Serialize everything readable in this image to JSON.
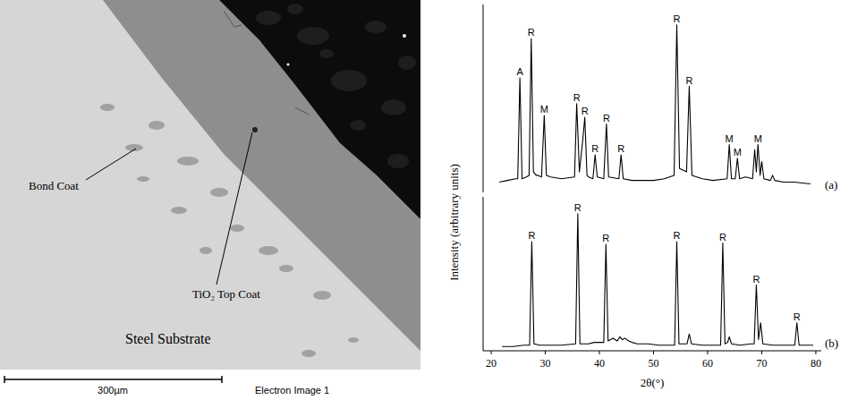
{
  "micrograph": {
    "labels": [
      "Bond Coat",
      "TiO₂ Top Coat",
      "Steel Substrate"
    ],
    "scale_bar": "300µm",
    "caption": "Electron Image 1"
  },
  "chart_data": [
    {
      "type": "line",
      "title": "(a)",
      "y_label": "Intensity (arbitrary units)",
      "xlim": [
        18.5,
        81
      ],
      "ylim": [
        0,
        110
      ],
      "tick_labels": false,
      "x": [
        21.5,
        23,
        24.5,
        24.9,
        25.3,
        25.7,
        26.5,
        27,
        27.4,
        27.8,
        28.3,
        28.6,
        29.3,
        29.8,
        30.2,
        31,
        33,
        35.4,
        35.8,
        36.3,
        36.9,
        37.3,
        37.7,
        38,
        38.8,
        39.2,
        39.6,
        40.8,
        41.3,
        41.7,
        43.6,
        44,
        44.4,
        46,
        48,
        50,
        52,
        53.8,
        54.3,
        54.8,
        56.1,
        56.6,
        57.1,
        59,
        61,
        63.6,
        64,
        64.4,
        65.1,
        65.5,
        65.9,
        67,
        68.3,
        68.7,
        69,
        69.3,
        69.7,
        70,
        70.4,
        71.6,
        72,
        72.4,
        74,
        76,
        79
      ],
      "series": [
        {
          "color": "#000000",
          "values": [
            6,
            7,
            8,
            8,
            67,
            8,
            9,
            10,
            90,
            12,
            10,
            10,
            9,
            45,
            10,
            9,
            8,
            9,
            52,
            12,
            30,
            44,
            10,
            9,
            8,
            22,
            9,
            8,
            40,
            9,
            8,
            22,
            8,
            7,
            7,
            7,
            8,
            10,
            98,
            14,
            12,
            62,
            10,
            8,
            7,
            8,
            28,
            8,
            8,
            20,
            8,
            9,
            8,
            25,
            12,
            28,
            10,
            18,
            8,
            7,
            10,
            7,
            6,
            6,
            5
          ]
        }
      ],
      "annotations": [
        {
          "text": "A",
          "x": 25.3,
          "y": 67
        },
        {
          "text": "R",
          "x": 27.4,
          "y": 90
        },
        {
          "text": "M",
          "x": 29.8,
          "y": 45
        },
        {
          "text": "R",
          "x": 35.8,
          "y": 52
        },
        {
          "text": "R",
          "x": 37.3,
          "y": 44
        },
        {
          "text": "R",
          "x": 39.2,
          "y": 22
        },
        {
          "text": "R",
          "x": 41.3,
          "y": 40
        },
        {
          "text": "R",
          "x": 44,
          "y": 22
        },
        {
          "text": "R",
          "x": 54.3,
          "y": 98
        },
        {
          "text": "R",
          "x": 56.6,
          "y": 62
        },
        {
          "text": "M",
          "x": 64,
          "y": 28
        },
        {
          "text": "M",
          "x": 65.5,
          "y": 20
        },
        {
          "text": "M",
          "x": 69.3,
          "y": 28
        }
      ]
    },
    {
      "type": "line",
      "title": "(b)",
      "x_label": "2θ(°)",
      "xlim": [
        18.5,
        81
      ],
      "ylim": [
        0,
        110
      ],
      "xticks": [
        20,
        30,
        40,
        50,
        60,
        70,
        80
      ],
      "tick_labels": "x",
      "x": [
        22,
        24,
        26,
        27.1,
        27.5,
        27.9,
        29,
        31,
        33,
        35.6,
        36,
        36.4,
        38,
        39,
        40.8,
        41.2,
        41.6,
        42.5,
        43.3,
        43.8,
        44.2,
        44.7,
        45.4,
        46,
        47,
        49,
        51,
        53,
        53.9,
        54.3,
        54.7,
        56.2,
        56.6,
        57,
        59,
        61,
        62.4,
        62.8,
        63.2,
        63.7,
        64,
        64.4,
        66,
        68,
        68.6,
        69,
        69.4,
        69.8,
        70.2,
        72,
        74,
        76.1,
        76.5,
        76.9,
        78,
        79.5
      ],
      "series": [
        {
          "color": "#000000",
          "values": [
            3,
            3,
            4,
            4,
            78,
            5,
            4,
            4,
            4,
            5,
            98,
            5,
            5,
            6,
            6,
            76,
            7,
            9,
            7,
            10,
            8,
            9,
            7,
            6,
            5,
            5,
            4,
            4,
            4,
            78,
            5,
            5,
            12,
            5,
            4,
            4,
            4,
            77,
            5,
            6,
            10,
            5,
            4,
            5,
            5,
            47,
            8,
            20,
            5,
            4,
            4,
            4,
            20,
            4,
            4,
            4
          ]
        }
      ],
      "annotations": [
        {
          "text": "R",
          "x": 27.5,
          "y": 78
        },
        {
          "text": "R",
          "x": 36,
          "y": 98
        },
        {
          "text": "R",
          "x": 41.2,
          "y": 76
        },
        {
          "text": "R",
          "x": 54.3,
          "y": 78
        },
        {
          "text": "R",
          "x": 62.8,
          "y": 77
        },
        {
          "text": "R",
          "x": 69,
          "y": 47
        },
        {
          "text": "R",
          "x": 76.5,
          "y": 20
        }
      ]
    }
  ]
}
